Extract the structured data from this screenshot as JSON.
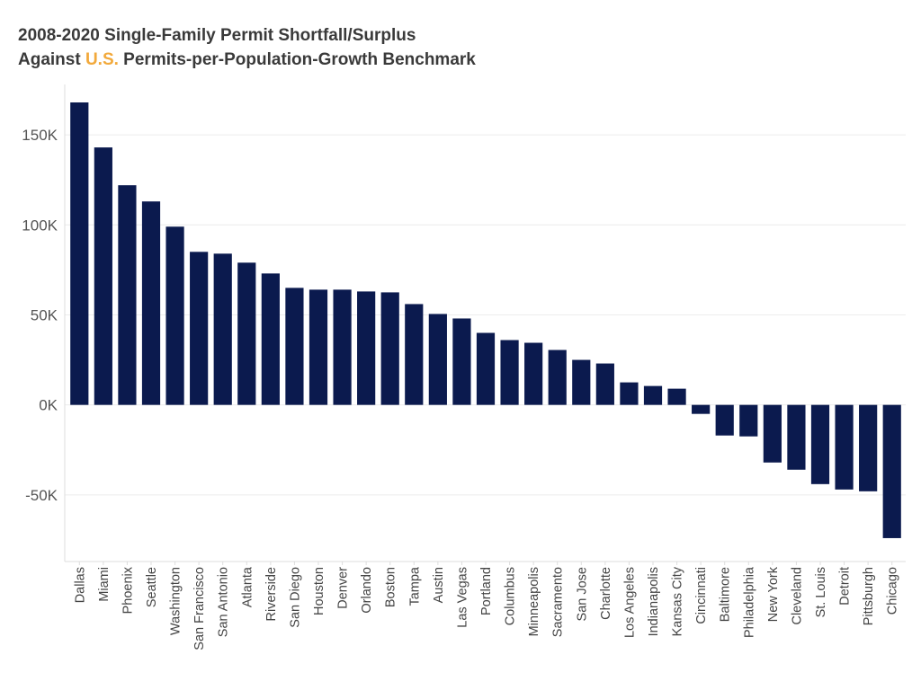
{
  "chart_data": {
    "type": "bar",
    "title_line1": "2008-2020 Single-Family Permit Shortfall/Surplus",
    "title_line2_prefix": "Against ",
    "title_line2_highlight": "U.S.",
    "title_line2_suffix": " Permits-per-Population-Growth Benchmark",
    "highlight_color": "#f2a93b",
    "bar_color": "#0b1a4e",
    "xlabel": "",
    "ylabel": "",
    "ylim": [
      -87000,
      168000
    ],
    "yticks": [
      150000,
      100000,
      50000,
      0,
      -50000
    ],
    "ytick_labels": [
      "150K",
      "100K",
      "50K",
      "0K",
      "-50K"
    ],
    "grid": true,
    "categories": [
      "Dallas",
      "Miami",
      "Phoenix",
      "Seattle",
      "Washington",
      "San Francisco",
      "San Antonio",
      "Atlanta",
      "Riverside",
      "San Diego",
      "Houston",
      "Denver",
      "Orlando",
      "Boston",
      "Tampa",
      "Austin",
      "Las Vegas",
      "Portland",
      "Columbus",
      "Minneapolis",
      "Sacramento",
      "San Jose",
      "Charlotte",
      "Los Angeles",
      "Indianapolis",
      "Kansas City",
      "Cincinnati",
      "Baltimore",
      "Philadelphia",
      "New York",
      "Cleveland",
      "St. Louis",
      "Detroit",
      "Pittsburgh",
      "Chicago"
    ],
    "values": [
      168000,
      143000,
      122000,
      113000,
      99000,
      85000,
      84000,
      79000,
      73000,
      65000,
      64000,
      64000,
      63000,
      62500,
      56000,
      50500,
      48000,
      40000,
      36000,
      34500,
      30500,
      25000,
      23000,
      12500,
      10500,
      9000,
      -5000,
      -17000,
      -17500,
      -32000,
      -36000,
      -44000,
      -47000,
      -48000,
      -74000
    ]
  }
}
